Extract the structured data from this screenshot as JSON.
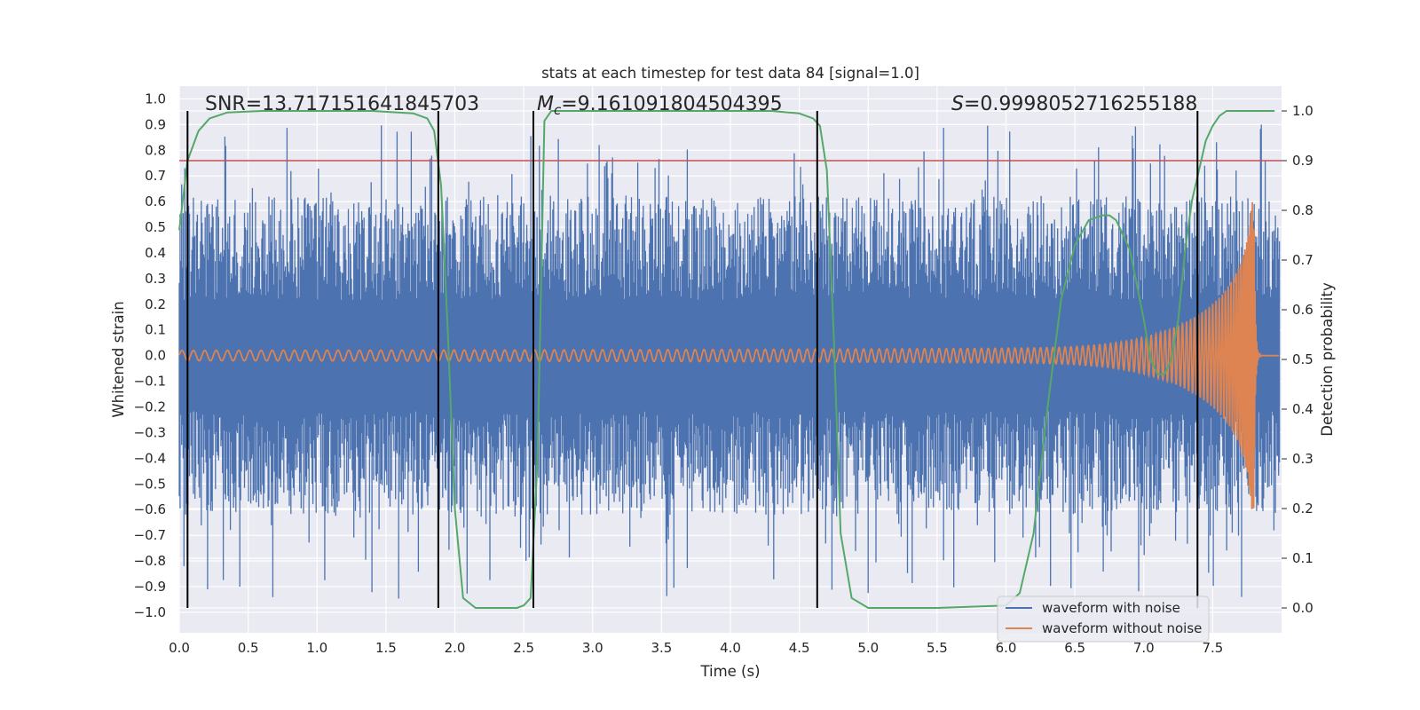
{
  "chart_data": {
    "type": "line",
    "title": "stats at each timestep for test data 84 [signal=1.0]",
    "xlabel": "Time (s)",
    "ylabel_left": "Whitened strain",
    "ylabel_right": "Detection probability",
    "xlim": [
      0.0,
      8.0
    ],
    "ylim_left": [
      -1.08,
      1.05
    ],
    "ylim_right": [
      -0.05,
      1.05
    ],
    "x_ticks": [
      "0.0",
      "0.5",
      "1.0",
      "1.5",
      "2.0",
      "2.5",
      "3.0",
      "3.5",
      "4.0",
      "4.5",
      "5.0",
      "5.5",
      "6.0",
      "6.5",
      "7.0",
      "7.5"
    ],
    "y_ticks_left": [
      "1.0",
      "0.9",
      "0.8",
      "0.7",
      "0.6",
      "0.5",
      "0.4",
      "0.3",
      "0.2",
      "0.1",
      "0.0",
      "−0.1",
      "−0.2",
      "−0.3",
      "−0.4",
      "−0.5",
      "−0.6",
      "−0.7",
      "−0.8",
      "−0.9",
      "−1.0"
    ],
    "y_ticks_right": [
      "1.0",
      "0.9",
      "0.8",
      "0.7",
      "0.6",
      "0.5",
      "0.4",
      "0.3",
      "0.2",
      "0.1",
      "0.0"
    ],
    "annotations": {
      "snr_text": "SNR=13.717151641845703",
      "mc_symbol": "M",
      "mc_subscript": "c",
      "mc_value": "=9.161091804504395",
      "s_symbol": "S",
      "s_value": "=0.9998052716255188"
    },
    "threshold": {
      "value": 0.9,
      "axis": "right",
      "color": "#c44e52"
    },
    "vertical_lines": [
      0.06,
      1.88,
      2.57,
      4.63,
      7.39
    ],
    "series": [
      {
        "name": "waveform with noise",
        "color": "#4c72b0",
        "kind": "noise",
        "envelope": 0.62,
        "max": 0.94,
        "min": -0.98
      },
      {
        "name": "waveform without noise",
        "color": "#dd8452",
        "kind": "chirp",
        "start_amplitude": 0.02,
        "peak_amplitude": 0.6,
        "merger_time": 7.8
      },
      {
        "name": "detection probability",
        "color": "#55a868",
        "axis": "right",
        "x": [
          0.0,
          0.06,
          0.14,
          0.22,
          0.35,
          0.6,
          1.0,
          1.4,
          1.7,
          1.8,
          1.85,
          1.9,
          1.95,
          2.0,
          2.06,
          2.15,
          2.3,
          2.45,
          2.5,
          2.55,
          2.6,
          2.65,
          2.7,
          2.8,
          3.0,
          3.5,
          4.0,
          4.3,
          4.5,
          4.6,
          4.65,
          4.7,
          4.75,
          4.8,
          4.88,
          5.0,
          5.5,
          6.0,
          6.1,
          6.2,
          6.3,
          6.4,
          6.5,
          6.6,
          6.7,
          6.75,
          6.8,
          6.9,
          7.0,
          7.05,
          7.1,
          7.15,
          7.2,
          7.25,
          7.3,
          7.35,
          7.4,
          7.45,
          7.5,
          7.55,
          7.6,
          7.7,
          7.8,
          7.95
        ],
        "y": [
          0.76,
          0.9,
          0.96,
          0.985,
          0.997,
          1.0,
          1.0,
          1.0,
          0.995,
          0.985,
          0.96,
          0.85,
          0.55,
          0.2,
          0.02,
          0.0,
          0.0,
          0.0,
          0.005,
          0.02,
          0.3,
          0.98,
          1.0,
          1.0,
          1.0,
          1.0,
          1.0,
          1.0,
          0.995,
          0.985,
          0.97,
          0.88,
          0.55,
          0.15,
          0.02,
          0.0,
          0.0,
          0.005,
          0.03,
          0.15,
          0.4,
          0.62,
          0.73,
          0.78,
          0.79,
          0.79,
          0.78,
          0.72,
          0.58,
          0.5,
          0.47,
          0.47,
          0.5,
          0.58,
          0.72,
          0.82,
          0.88,
          0.94,
          0.97,
          0.99,
          1.0,
          1.0,
          1.0,
          1.0
        ]
      }
    ],
    "legend": {
      "location": "lower right",
      "entries": [
        "waveform with noise",
        "waveform without noise"
      ]
    }
  }
}
